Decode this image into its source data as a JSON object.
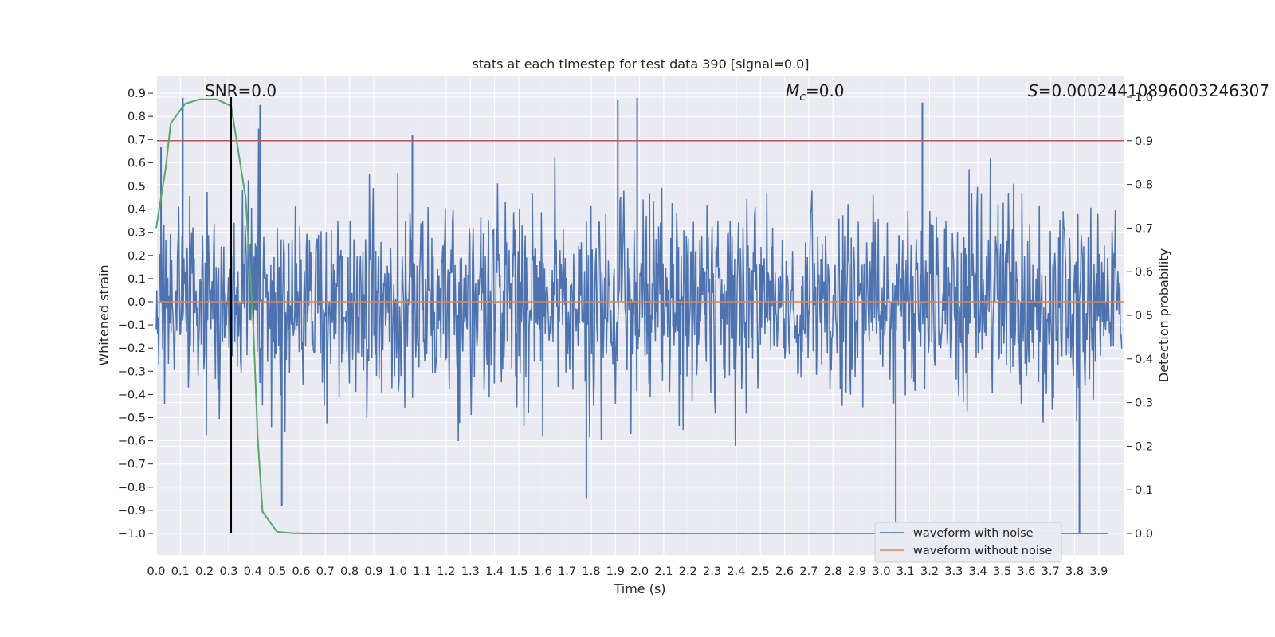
{
  "chart_data": {
    "type": "line",
    "title": "stats at each timestep for test data 390 [signal=0.0]",
    "xlabel": "Time (s)",
    "ylabel": "Whitened strain",
    "y2label": "Detection probability",
    "xlim": [
      0.0,
      4.0
    ],
    "ylim": [
      -1.09,
      0.97
    ],
    "y2lim": [
      -0.05,
      1.0
    ],
    "grid": true,
    "x_ticks": [
      "0.0",
      "0.1",
      "0.2",
      "0.3",
      "0.4",
      "0.5",
      "0.6",
      "0.7",
      "0.8",
      "0.9",
      "1.0",
      "1.1",
      "1.2",
      "1.3",
      "1.4",
      "1.5",
      "1.6",
      "1.7",
      "1.8",
      "1.9",
      "2.0",
      "2.1",
      "2.2",
      "2.3",
      "2.4",
      "2.5",
      "2.6",
      "2.7",
      "2.8",
      "2.9",
      "3.0",
      "3.1",
      "3.2",
      "3.3",
      "3.4",
      "3.5",
      "3.6",
      "3.7",
      "3.8",
      "3.9"
    ],
    "y_ticks": [
      "0.9",
      "0.8",
      "0.7",
      "0.6",
      "0.5",
      "0.4",
      "0.3",
      "0.2",
      "0.1",
      "0.0",
      "−0.1",
      "−0.2",
      "−0.3",
      "−0.4",
      "−0.5",
      "−0.6",
      "−0.7",
      "−0.8",
      "−0.9",
      "−1.0"
    ],
    "y2_ticks": [
      "1.0",
      "0.9",
      "0.8",
      "0.7",
      "0.6",
      "0.5",
      "0.4",
      "0.3",
      "0.2",
      "0.1",
      "0.0"
    ],
    "annotations": {
      "snr": "SNR=0.0",
      "mc_symbol": "M",
      "mc_sub": "c",
      "mc_value": "=0.0",
      "s_symbol": "S",
      "s_value": "=0.00024410896003246307"
    },
    "series": [
      {
        "name": "waveform with noise",
        "color": "#4c72b0",
        "axis": "left",
        "description_values": "dense noise oscillating roughly between -0.6 and 0.6 with spikes up to 0.88 and down to -1.0 (at t≈3.06 and t≈3.82)",
        "spikes": [
          {
            "x": 0.02,
            "y": 0.67
          },
          {
            "x": 0.11,
            "y": 0.88
          },
          {
            "x": 0.43,
            "y": 0.85
          },
          {
            "x": 1.06,
            "y": 0.72
          },
          {
            "x": 1.99,
            "y": 0.88
          },
          {
            "x": 1.91,
            "y": 0.87
          },
          {
            "x": 3.17,
            "y": 0.86
          },
          {
            "x": 0.52,
            "y": -0.88
          },
          {
            "x": 1.78,
            "y": -0.85
          },
          {
            "x": 3.06,
            "y": -1.0
          },
          {
            "x": 3.82,
            "y": -1.0
          }
        ]
      },
      {
        "name": "waveform without noise",
        "color": "#dd8452",
        "axis": "left",
        "x": [
          0.0,
          4.0
        ],
        "y": [
          0.0,
          0.0
        ]
      },
      {
        "name": "detection probability",
        "color": "#55a868",
        "axis": "right",
        "x": [
          0.0,
          0.04,
          0.06,
          0.12,
          0.18,
          0.25,
          0.31,
          0.37,
          0.4,
          0.42,
          0.44,
          0.5,
          0.56,
          0.62,
          1.0,
          2.0,
          3.0,
          3.94
        ],
        "y": [
          0.7,
          0.84,
          0.94,
          0.985,
          0.995,
          0.995,
          0.98,
          0.77,
          0.5,
          0.22,
          0.05,
          0.004,
          0.001,
          0.0,
          0.0,
          0.0,
          0.0,
          0.0
        ]
      }
    ],
    "threshold_line": {
      "axis": "right",
      "y": 0.9,
      "color": "#c44e52"
    },
    "marker_line": {
      "x": 0.31,
      "color": "#000000"
    },
    "legend": {
      "position": "lower-right",
      "entries": [
        {
          "label": "waveform with noise",
          "color": "#4c72b0"
        },
        {
          "label": "waveform without noise",
          "color": "#dd8452"
        }
      ]
    }
  }
}
